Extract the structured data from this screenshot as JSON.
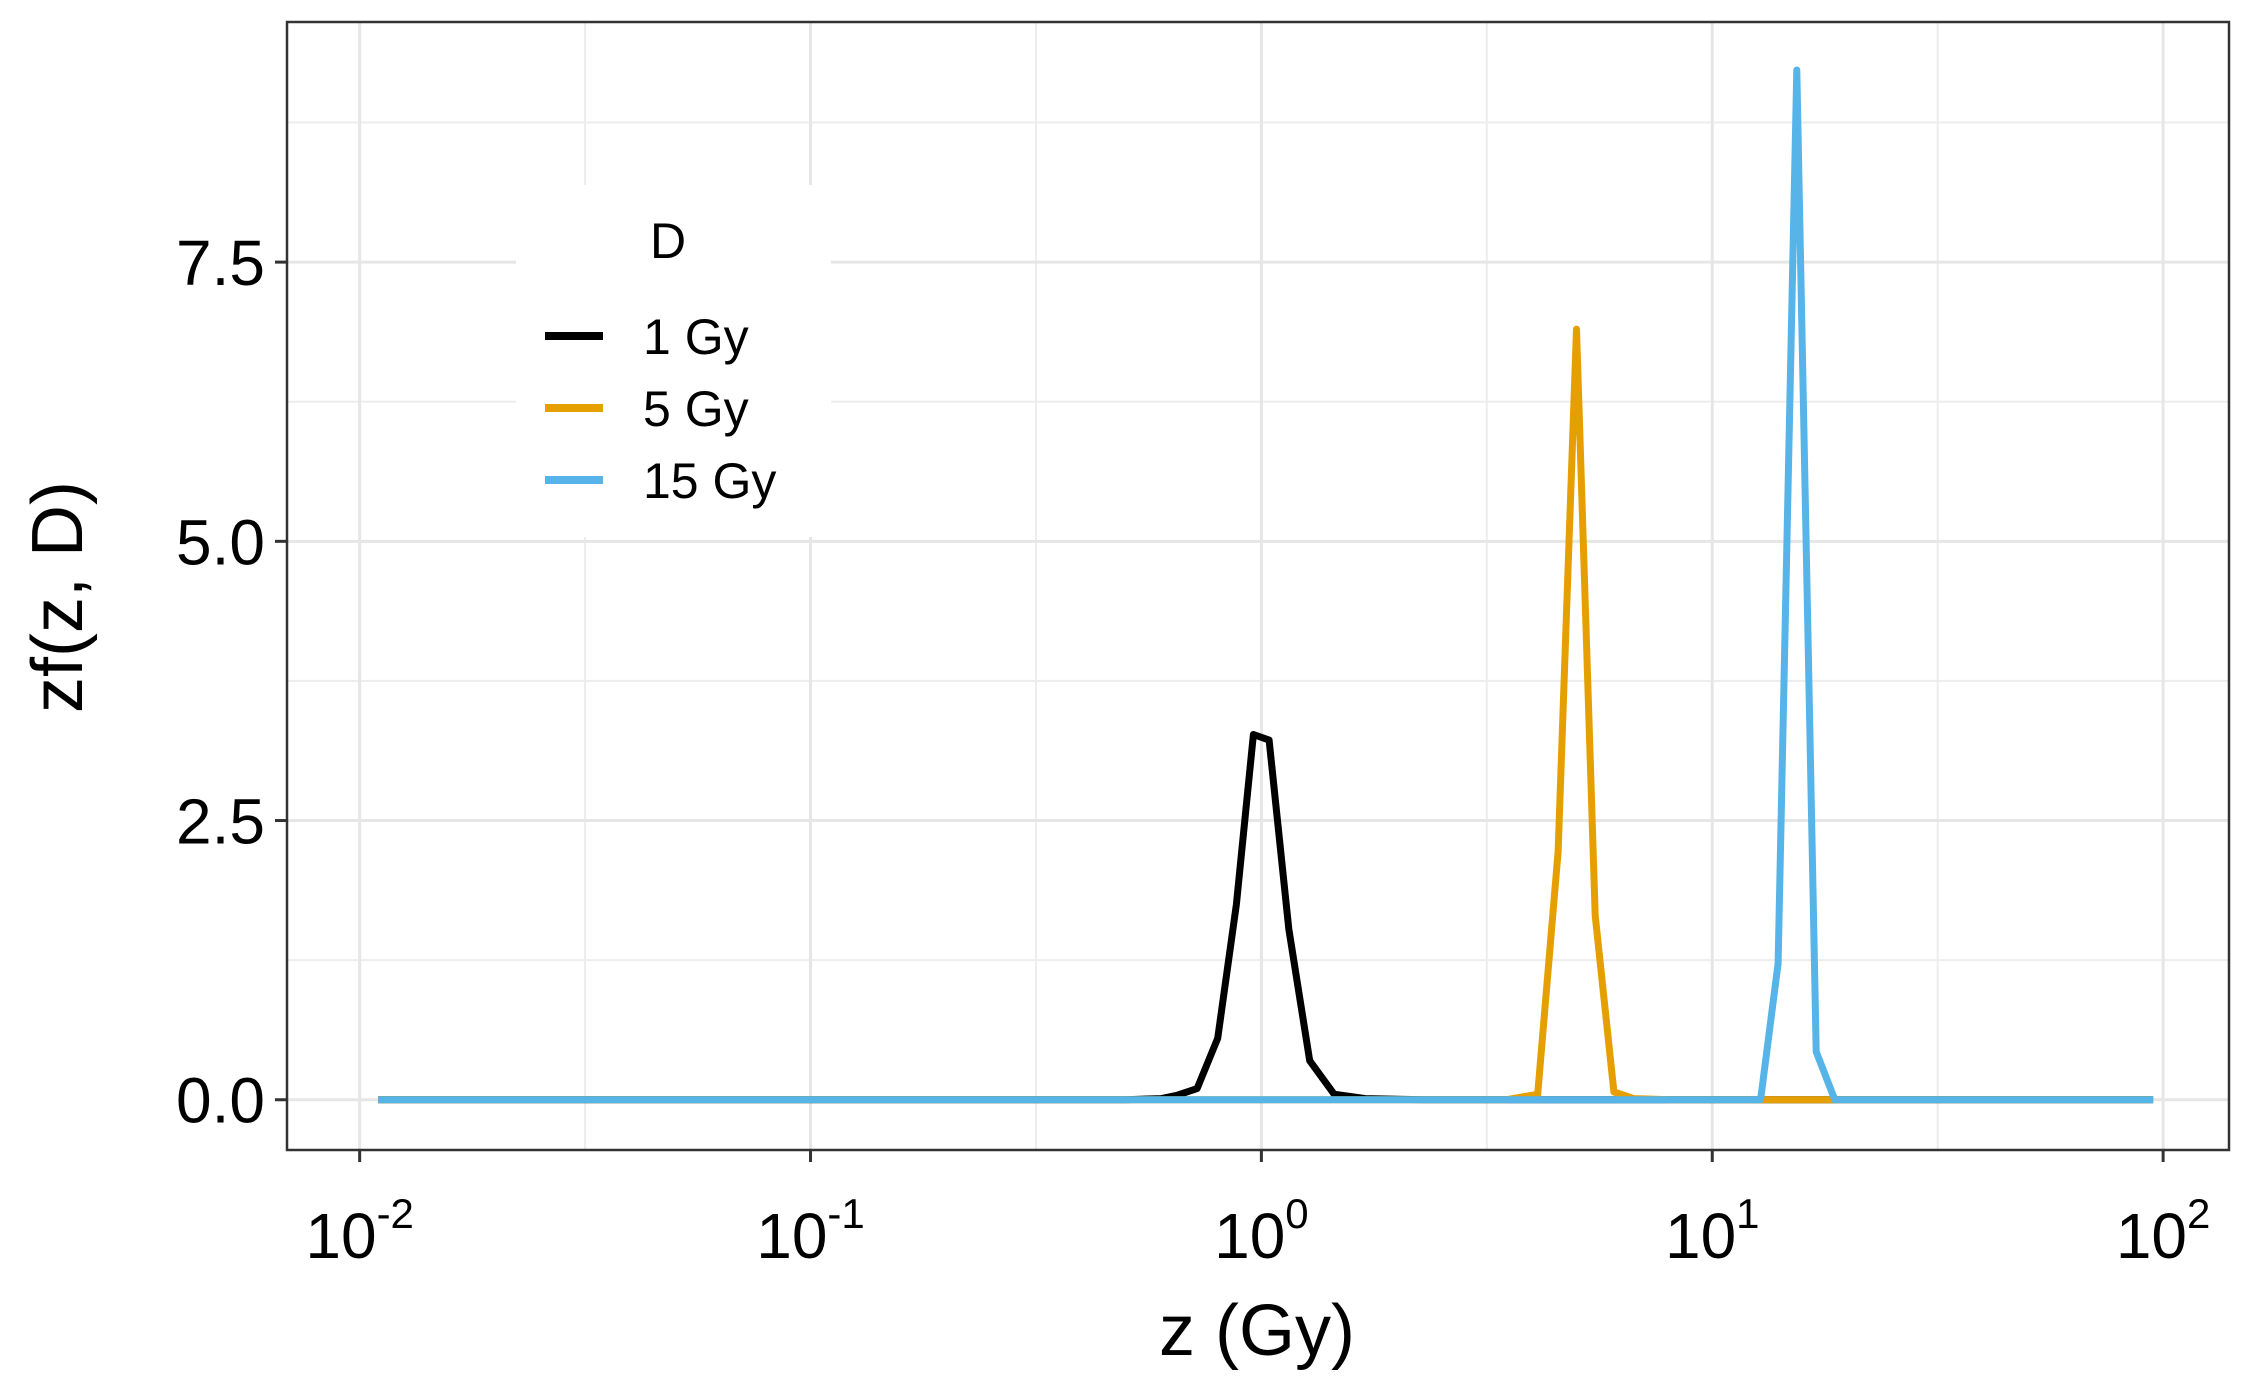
{
  "chart_data": {
    "type": "line",
    "xlabel": "z (Gy)",
    "ylabel": "zf(z, D)",
    "x_scale": "log10",
    "xlim": [
      0.0069,
      140
    ],
    "ylim": [
      -0.45,
      9.65
    ],
    "grid": true,
    "x_ticks": [
      {
        "base": "10",
        "exp": "-2",
        "value": 0.01
      },
      {
        "base": "10",
        "exp": "-1",
        "value": 0.1
      },
      {
        "base": "10",
        "exp": "0",
        "value": 1
      },
      {
        "base": "10",
        "exp": "1",
        "value": 10
      },
      {
        "base": "10",
        "exp": "2",
        "value": 100
      }
    ],
    "y_ticks": [
      {
        "label": "0.0",
        "value": 0
      },
      {
        "label": "2.5",
        "value": 2.5
      },
      {
        "label": "5.0",
        "value": 5
      },
      {
        "label": "7.5",
        "value": 7.5
      }
    ],
    "legend": {
      "title": "D",
      "position": "top-left",
      "entries": [
        "1 Gy",
        "5 Gy",
        "15 Gy"
      ]
    },
    "series": [
      {
        "name": "1 Gy",
        "color": "#000000",
        "points": [
          [
            0.011,
            0
          ],
          [
            0.5,
            0
          ],
          [
            0.6,
            0.01
          ],
          [
            0.65,
            0.04
          ],
          [
            0.72,
            0.1
          ],
          [
            0.8,
            0.55
          ],
          [
            0.88,
            1.75
          ],
          [
            0.96,
            3.27
          ],
          [
            1.04,
            3.22
          ],
          [
            1.15,
            1.53
          ],
          [
            1.28,
            0.35
          ],
          [
            1.45,
            0.05
          ],
          [
            1.7,
            0.01
          ],
          [
            2.3,
            0
          ],
          [
            3.5,
            0
          ],
          [
            95,
            0
          ]
        ]
      },
      {
        "name": "5 Gy",
        "color": "#E69F00",
        "points": [
          [
            0.011,
            0
          ],
          [
            3.5,
            0
          ],
          [
            4.1,
            0.05
          ],
          [
            4.55,
            2.22
          ],
          [
            5.0,
            6.9
          ],
          [
            5.5,
            1.65
          ],
          [
            6.05,
            0.07
          ],
          [
            6.7,
            0.01
          ],
          [
            8,
            0
          ],
          [
            95,
            0
          ]
        ]
      },
      {
        "name": "15 Gy",
        "color": "#56B4E9",
        "points": [
          [
            0.011,
            0
          ],
          [
            12.8,
            0
          ],
          [
            14.0,
            1.22
          ],
          [
            15.4,
            9.22
          ],
          [
            17.0,
            0.43
          ],
          [
            18.7,
            0
          ],
          [
            95,
            0
          ]
        ]
      }
    ]
  }
}
